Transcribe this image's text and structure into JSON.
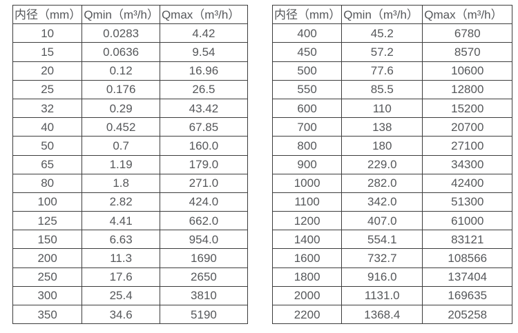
{
  "colors": {
    "border": "#3b3b3b",
    "text": "#55575a",
    "background": "#ffffff"
  },
  "chart_data": [
    {
      "type": "table",
      "title": "",
      "columns": [
        "内径（mm）",
        "Qmin（m³/h）",
        "Qmax（m³/h）"
      ],
      "rows": [
        [
          "10",
          "0.0283",
          "4.42"
        ],
        [
          "15",
          "0.0636",
          "9.54"
        ],
        [
          "20",
          "0.12",
          "16.96"
        ],
        [
          "25",
          "0.176",
          "26.5"
        ],
        [
          "32",
          "0.29",
          "43.42"
        ],
        [
          "40",
          "0.452",
          "67.85"
        ],
        [
          "50",
          "0.7",
          "160.0"
        ],
        [
          "65",
          "1.19",
          "179.0"
        ],
        [
          "80",
          "1.8",
          "271.0"
        ],
        [
          "100",
          "2.82",
          "424.0"
        ],
        [
          "125",
          "4.41",
          "662.0"
        ],
        [
          "150",
          "6.63",
          "954.0"
        ],
        [
          "200",
          "11.3",
          "1690"
        ],
        [
          "250",
          "17.6",
          "2650"
        ],
        [
          "300",
          "25.4",
          "3810"
        ],
        [
          "350",
          "34.6",
          "5190"
        ]
      ]
    },
    {
      "type": "table",
      "title": "",
      "columns": [
        "内径（mm）",
        "Qmin（m³/h）",
        "Qmax（m³/h）"
      ],
      "rows": [
        [
          "400",
          "45.2",
          "6780"
        ],
        [
          "450",
          "57.2",
          "8570"
        ],
        [
          "500",
          "77.6",
          "10600"
        ],
        [
          "550",
          "85.5",
          "12800"
        ],
        [
          "600",
          "110",
          "15200"
        ],
        [
          "700",
          "138",
          "20700"
        ],
        [
          "800",
          "180",
          "27100"
        ],
        [
          "900",
          "229.0",
          "34300"
        ],
        [
          "1000",
          "282.0",
          "42400"
        ],
        [
          "1100",
          "342.0",
          "51300"
        ],
        [
          "1200",
          "407.0",
          "61000"
        ],
        [
          "1400",
          "554.1",
          "83121"
        ],
        [
          "1600",
          "732.7",
          "108566"
        ],
        [
          "1800",
          "916.0",
          "137404"
        ],
        [
          "2000",
          "1131.0",
          "169635"
        ],
        [
          "2200",
          "1368.4",
          "205258"
        ]
      ]
    }
  ]
}
